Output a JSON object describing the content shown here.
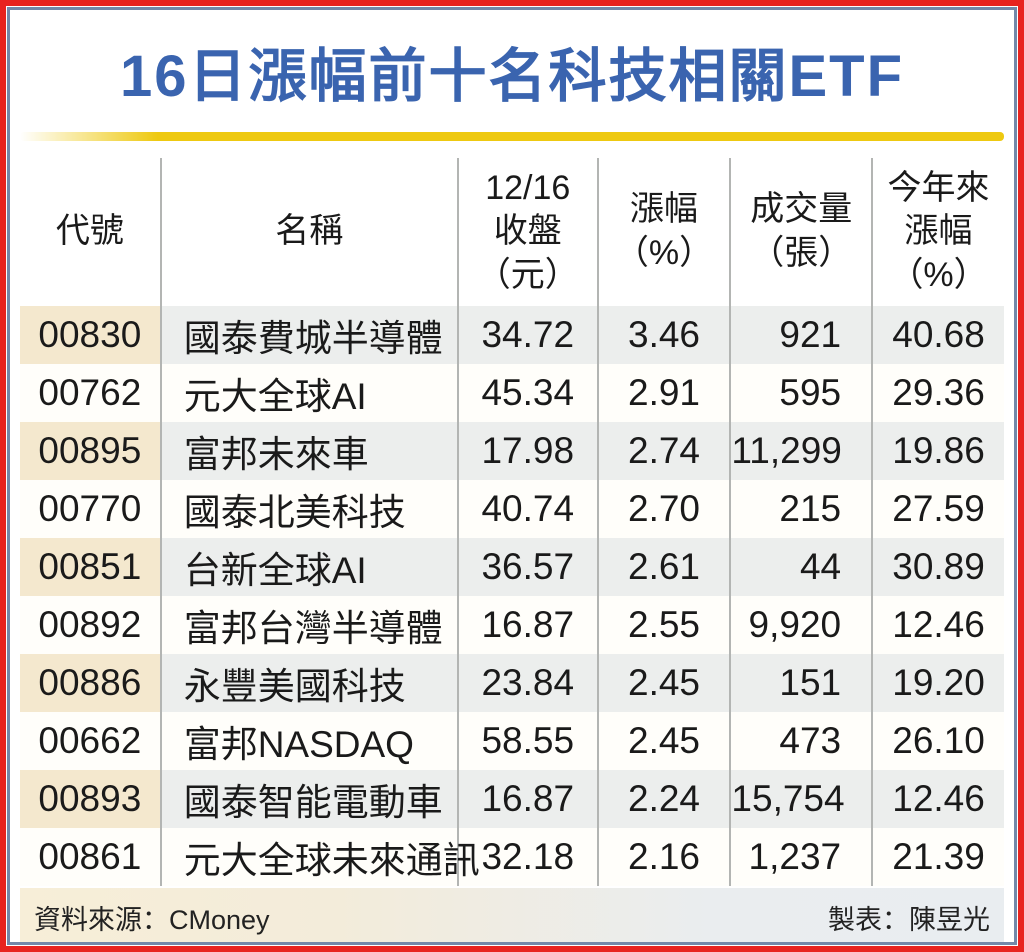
{
  "title": "16日漲幅前十名科技相關ETF",
  "colors": {
    "outer_border": "#e8231f",
    "inner_border": "#7388a9",
    "title_blue": "#3a64af",
    "gold_rule": "#eec911",
    "odd_row_code_bg": "#f4e8ce",
    "odd_row_bg": "#eceeed",
    "divider_gray": "#b3b5b3"
  },
  "table": {
    "headers": [
      {
        "lines": [
          "代號"
        ]
      },
      {
        "lines": [
          "名稱"
        ]
      },
      {
        "lines": [
          "12/16",
          "收盤",
          "（元）"
        ]
      },
      {
        "lines": [
          "漲幅",
          "（%）"
        ]
      },
      {
        "lines": [
          "成交量",
          "（張）"
        ]
      },
      {
        "lines": [
          "今年來",
          "漲幅",
          "（%）"
        ]
      }
    ],
    "rows": [
      {
        "code": "00830",
        "name": "國泰費城半導體",
        "close": "34.72",
        "change": "3.46",
        "volume": "921",
        "ytd": "40.68"
      },
      {
        "code": "00762",
        "name": "元大全球AI",
        "close": "45.34",
        "change": "2.91",
        "volume": "595",
        "ytd": "29.36"
      },
      {
        "code": "00895",
        "name": "富邦未來車",
        "close": "17.98",
        "change": "2.74",
        "volume": "11,299",
        "ytd": "19.86"
      },
      {
        "code": "00770",
        "name": "國泰北美科技",
        "close": "40.74",
        "change": "2.70",
        "volume": "215",
        "ytd": "27.59"
      },
      {
        "code": "00851",
        "name": "台新全球AI",
        "close": "36.57",
        "change": "2.61",
        "volume": "44",
        "ytd": "30.89"
      },
      {
        "code": "00892",
        "name": "富邦台灣半導體",
        "close": "16.87",
        "change": "2.55",
        "volume": "9,920",
        "ytd": "12.46"
      },
      {
        "code": "00886",
        "name": "永豐美國科技",
        "close": "23.84",
        "change": "2.45",
        "volume": "151",
        "ytd": "19.20"
      },
      {
        "code": "00662",
        "name": "富邦NASDAQ",
        "close": "58.55",
        "change": "2.45",
        "volume": "473",
        "ytd": "26.10"
      },
      {
        "code": "00893",
        "name": "國泰智能電動車",
        "close": "16.87",
        "change": "2.24",
        "volume": "15,754",
        "ytd": "12.46"
      },
      {
        "code": "00861",
        "name": "元大全球未來通訊",
        "close": "32.18",
        "change": "2.16",
        "volume": "1,237",
        "ytd": "21.39"
      }
    ]
  },
  "footer": {
    "source": "資料來源：CMoney",
    "credit": "製表：陳昱光"
  },
  "chart_data": {
    "type": "table",
    "title": "16日漲幅前十名科技相關ETF",
    "columns": [
      "代號",
      "名稱",
      "12/16收盤（元）",
      "漲幅（%）",
      "成交量（張）",
      "今年來漲幅（%）"
    ],
    "rows": [
      [
        "00830",
        "國泰費城半導體",
        34.72,
        3.46,
        921,
        40.68
      ],
      [
        "00762",
        "元大全球AI",
        45.34,
        2.91,
        595,
        29.36
      ],
      [
        "00895",
        "富邦未來車",
        17.98,
        2.74,
        11299,
        19.86
      ],
      [
        "00770",
        "國泰北美科技",
        40.74,
        2.7,
        215,
        27.59
      ],
      [
        "00851",
        "台新全球AI",
        36.57,
        2.61,
        44,
        30.89
      ],
      [
        "00892",
        "富邦台灣半導體",
        16.87,
        2.55,
        9920,
        12.46
      ],
      [
        "00886",
        "永豐美國科技",
        23.84,
        2.45,
        151,
        19.2
      ],
      [
        "00662",
        "富邦NASDAQ",
        58.55,
        2.45,
        473,
        26.1
      ],
      [
        "00893",
        "國泰智能電動車",
        16.87,
        2.24,
        15754,
        12.46
      ],
      [
        "00861",
        "元大全球未來通訊",
        32.18,
        2.16,
        1237,
        21.39
      ]
    ],
    "source": "CMoney",
    "credit": "陳昱光"
  }
}
